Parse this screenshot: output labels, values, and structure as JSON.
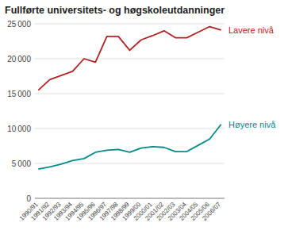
{
  "chart_data": {
    "type": "line",
    "title": "Fullførte universitets- og høgskoleutdanninger",
    "categories": [
      "1990/91",
      "1991/92",
      "1992/93",
      "1993/94",
      "1994/95",
      "1995/96",
      "1996/97",
      "1997/98",
      "1998/99",
      "1999/00",
      "2000/01",
      "2001/02",
      "2002/03",
      "2003/04",
      "2004/05",
      "2005/06",
      "2006/07"
    ],
    "series": [
      {
        "name": "Lavere nivå",
        "color": "#b22222",
        "values": [
          15500,
          17000,
          17600,
          18200,
          20000,
          19500,
          23200,
          23200,
          21200,
          22700,
          23300,
          24000,
          23000,
          23000,
          23800,
          24600,
          24100
        ]
      },
      {
        "name": "Høyere nivå",
        "color": "#008b8b",
        "values": [
          4200,
          4500,
          4900,
          5400,
          5700,
          6600,
          6900,
          7000,
          6600,
          7200,
          7400,
          7300,
          6700,
          6700,
          7600,
          8500,
          10600
        ]
      }
    ],
    "ylim": [
      0,
      25000
    ],
    "yticks": [
      0,
      {
        "value": 5000,
        "label": "5 000"
      },
      {
        "value": 10000,
        "label": "10 000"
      },
      {
        "value": 15000,
        "label": "15 000"
      },
      {
        "value": 20000,
        "label": "20 000"
      },
      {
        "value": 25000,
        "label": "25 000"
      }
    ],
    "grid": true
  }
}
